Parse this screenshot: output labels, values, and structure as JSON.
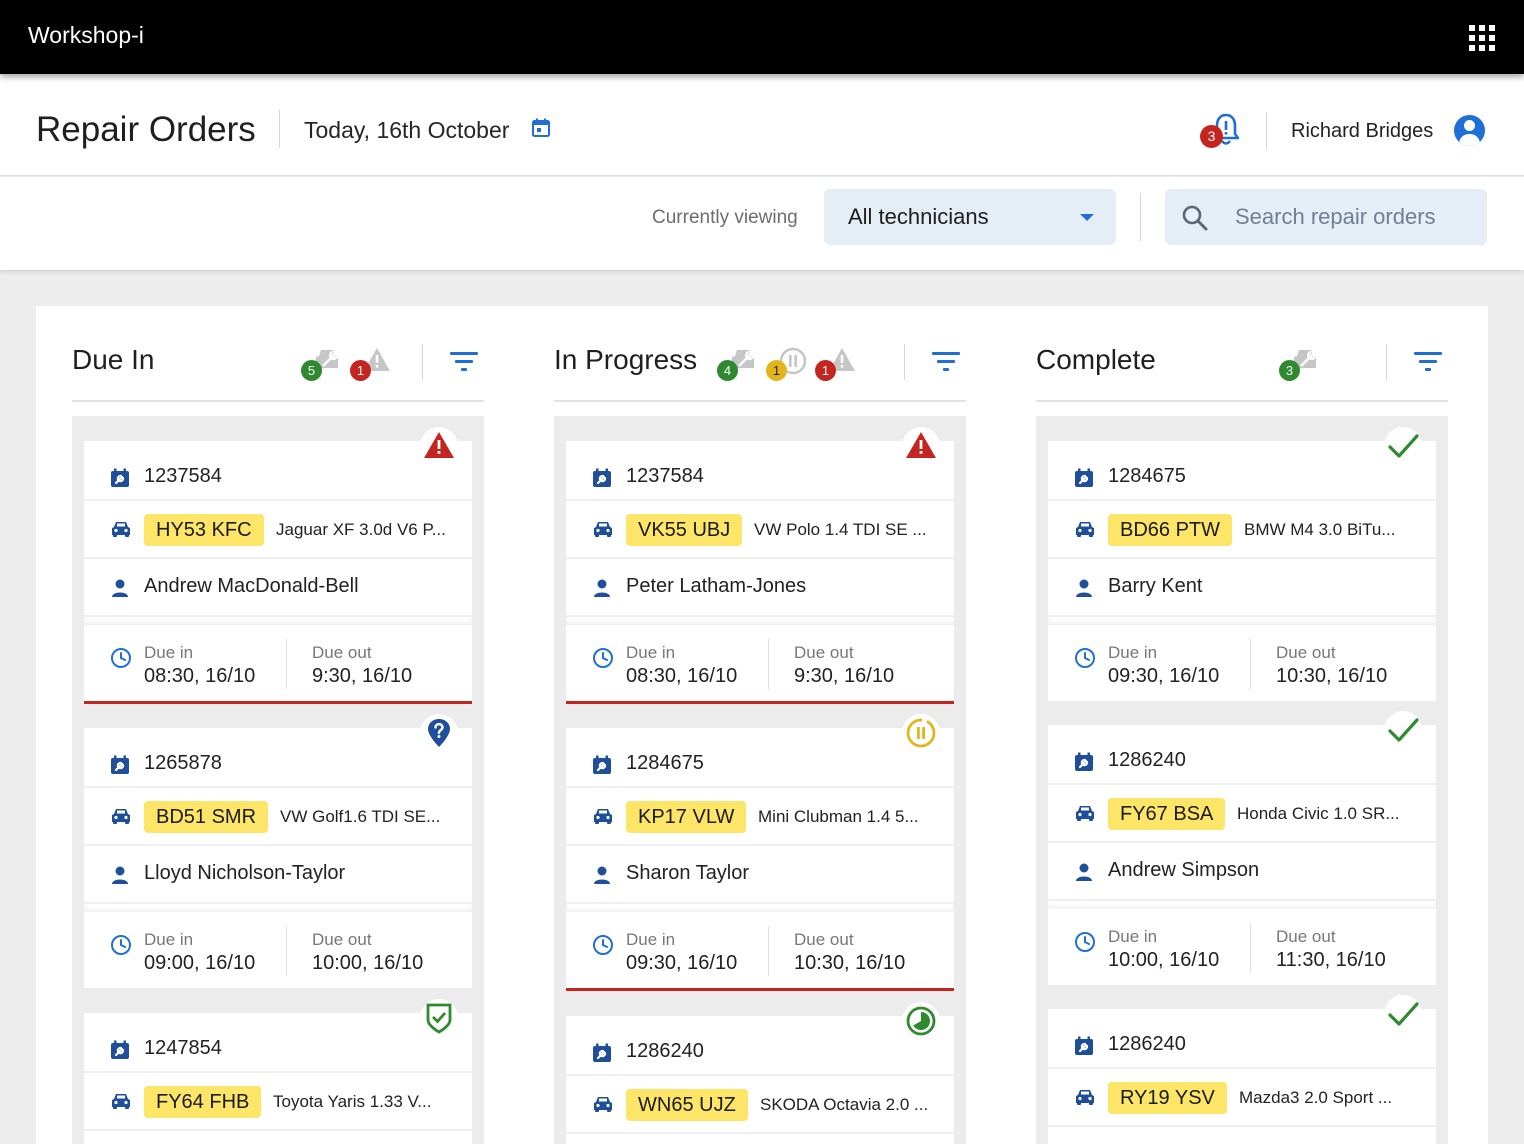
{
  "app": {
    "title": "Workshop-i"
  },
  "header": {
    "title": "Repair Orders",
    "date": "Today, 16th October",
    "notification_count": "3",
    "user_name": "Richard Bridges"
  },
  "filters": {
    "viewing_label": "Currently viewing",
    "technician": "All technicians",
    "search_placeholder": "Search repair orders"
  },
  "columns": [
    {
      "title": "Due In",
      "stats": [
        {
          "icon": "wrench-car-icon",
          "count": "5",
          "color": "green"
        },
        {
          "icon": "warning-icon",
          "count": "1",
          "color": "red"
        }
      ],
      "cards": [
        {
          "status": "alert-icon",
          "order": "1237584",
          "plate": "HY53 KFC",
          "vehicle": "Jaguar XF 3.0d V6 P...",
          "customer": "Andrew MacDonald-Bell",
          "due_in_label": "Due in",
          "due_in": "08:30, 16/10",
          "due_out_label": "Due out",
          "due_out": "9:30, 16/10",
          "late": true
        },
        {
          "status": "question-icon",
          "order": "1265878",
          "plate": "BD51 SMR",
          "vehicle": "VW Golf1.6 TDI SE...",
          "customer": "Lloyd Nicholson-Taylor",
          "due_in_label": "Due in",
          "due_in": "09:00, 16/10",
          "due_out_label": "Due out",
          "due_out": "10:00, 16/10",
          "late": false
        },
        {
          "status": "shield-check-icon",
          "order": "1247854",
          "plate": "FY64 FHB",
          "vehicle": "Toyota Yaris 1.33 V...",
          "customer": "",
          "due_in_label": "",
          "due_in": "",
          "due_out_label": "",
          "due_out": "",
          "late": false
        }
      ]
    },
    {
      "title": "In Progress",
      "stats": [
        {
          "icon": "wrench-car-icon",
          "count": "4",
          "color": "green"
        },
        {
          "icon": "pause-icon",
          "count": "1",
          "color": "amber"
        },
        {
          "icon": "warning-icon",
          "count": "1",
          "color": "red"
        }
      ],
      "cards": [
        {
          "status": "alert-icon",
          "order": "1237584",
          "plate": "VK55 UBJ",
          "vehicle": "VW Polo 1.4 TDI SE ...",
          "customer": "Peter Latham-Jones",
          "due_in_label": "Due in",
          "due_in": "08:30, 16/10",
          "due_out_label": "Due out",
          "due_out": "9:30, 16/10",
          "late": true
        },
        {
          "status": "pause-icon",
          "order": "1284675",
          "plate": "KP17 VLW",
          "vehicle": "Mini Clubman 1.4 5...",
          "customer": "Sharon Taylor",
          "due_in_label": "Due in",
          "due_in": "09:30, 16/10",
          "due_out_label": "Due out",
          "due_out": "10:30, 16/10",
          "late": true
        },
        {
          "status": "progress-icon",
          "order": "1286240",
          "plate": "WN65 UJZ",
          "vehicle": "SKODA Octavia 2.0 ...",
          "customer": "",
          "due_in_label": "",
          "due_in": "",
          "due_out_label": "",
          "due_out": "",
          "late": false
        }
      ]
    },
    {
      "title": "Complete",
      "stats": [
        {
          "icon": "wrench-car-icon",
          "count": "3",
          "color": "green"
        }
      ],
      "cards": [
        {
          "status": "check-icon",
          "order": "1284675",
          "plate": "BD66 PTW",
          "vehicle": "BMW M4 3.0 BiTu...",
          "customer": "Barry Kent",
          "due_in_label": "Due in",
          "due_in": "09:30, 16/10",
          "due_out_label": "Due out",
          "due_out": "10:30, 16/10",
          "late": false
        },
        {
          "status": "check-icon",
          "order": "1286240",
          "plate": "FY67 BSA",
          "vehicle": "Honda Civic 1.0 SR...",
          "customer": "Andrew Simpson",
          "due_in_label": "Due in",
          "due_in": "10:00, 16/10",
          "due_out_label": "Due out",
          "due_out": "11:30, 16/10",
          "late": false
        },
        {
          "status": "check-icon",
          "order": "1286240",
          "plate": "RY19 YSV",
          "vehicle": "Mazda3 2.0 Sport ...",
          "customer": "",
          "due_in_label": "",
          "due_in": "",
          "due_out_label": "",
          "due_out": "",
          "late": false
        }
      ]
    }
  ],
  "colors": {
    "accent": "#1f6fd6",
    "alert": "#c4251f",
    "plate": "#fde567",
    "success": "#2f8a2f",
    "paused": "#e3b51c"
  }
}
